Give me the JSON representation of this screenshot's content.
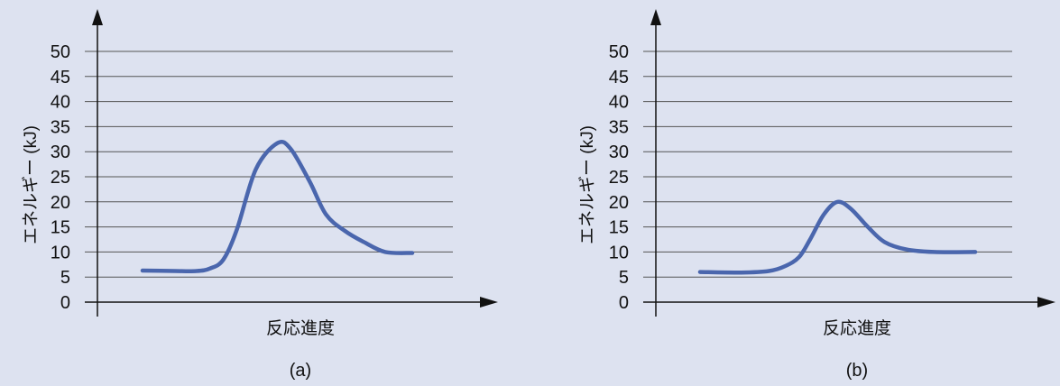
{
  "colors": {
    "background": "#dde2f0",
    "curve": "#4a66ad",
    "grid": "#555555",
    "axis": "#111111"
  },
  "chart_data": [
    {
      "type": "line",
      "panel_label": "(a)",
      "xlabel": "反応進度",
      "ylabel": "エネルギー (kJ)",
      "yticks": [
        "0",
        "5",
        "10",
        "15",
        "20",
        "25",
        "30",
        "35",
        "40",
        "45",
        "50"
      ],
      "ylim": [
        0,
        50
      ],
      "xlim": [
        0,
        1
      ],
      "grid": true,
      "series": [
        {
          "x": [
            0.0,
            0.12,
            0.2,
            0.25,
            0.3,
            0.35,
            0.42,
            0.5,
            0.55,
            0.62,
            0.68,
            0.75,
            0.82,
            0.9,
            1.0
          ],
          "y": [
            6.3,
            6.2,
            6.2,
            6.7,
            8.5,
            14.5,
            26.5,
            31.7,
            30.5,
            24,
            17.5,
            14.2,
            12,
            10,
            9.8
          ]
        }
      ]
    },
    {
      "type": "line",
      "panel_label": "(b)",
      "xlabel": "反応進度",
      "ylabel": "エネルギー (kJ)",
      "yticks": [
        "0",
        "5",
        "10",
        "15",
        "20",
        "25",
        "30",
        "35",
        "40",
        "45",
        "50"
      ],
      "ylim": [
        0,
        50
      ],
      "xlim": [
        0,
        1
      ],
      "grid": true,
      "series": [
        {
          "x": [
            0.0,
            0.15,
            0.25,
            0.31,
            0.36,
            0.4,
            0.45,
            0.5,
            0.55,
            0.61,
            0.67,
            0.75,
            0.85,
            1.0
          ],
          "y": [
            6.0,
            5.9,
            6.2,
            7.2,
            9.0,
            12.5,
            17.5,
            20.0,
            18.5,
            15.0,
            12.0,
            10.5,
            10.0,
            10.0
          ]
        }
      ]
    }
  ]
}
